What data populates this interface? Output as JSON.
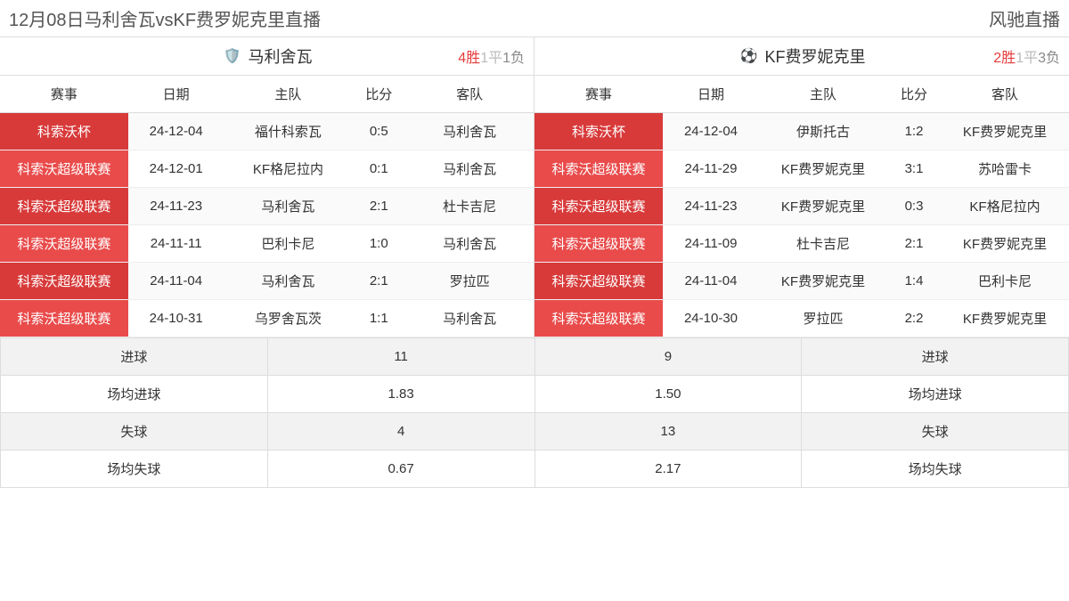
{
  "header": {
    "title": "12月08日马利舍瓦vsKF费罗妮克里直播",
    "brand": "风驰直播"
  },
  "columns": {
    "event": "赛事",
    "date": "日期",
    "home": "主队",
    "score": "比分",
    "away": "客队"
  },
  "left": {
    "logo": "🛡️",
    "name": "马利舍瓦",
    "record": {
      "wins": "4胜",
      "draws": "1平",
      "losses": "1负"
    },
    "matches": [
      {
        "comp": "科索沃杯",
        "date": "24-12-04",
        "home": "福什科索瓦",
        "score": "0:5",
        "away": "马利舍瓦",
        "alt": true
      },
      {
        "comp": "科索沃超级联赛",
        "date": "24-12-01",
        "home": "KF格尼拉内",
        "score": "0:1",
        "away": "马利舍瓦",
        "alt": false
      },
      {
        "comp": "科索沃超级联赛",
        "date": "24-11-23",
        "home": "马利舍瓦",
        "score": "2:1",
        "away": "杜卡吉尼",
        "alt": true
      },
      {
        "comp": "科索沃超级联赛",
        "date": "24-11-11",
        "home": "巴利卡尼",
        "score": "1:0",
        "away": "马利舍瓦",
        "alt": false
      },
      {
        "comp": "科索沃超级联赛",
        "date": "24-11-04",
        "home": "马利舍瓦",
        "score": "2:1",
        "away": "罗拉匹",
        "alt": true
      },
      {
        "comp": "科索沃超级联赛",
        "date": "24-10-31",
        "home": "乌罗舍瓦茨",
        "score": "1:1",
        "away": "马利舍瓦",
        "alt": false
      }
    ]
  },
  "right": {
    "logo": "⚽",
    "name": "KF费罗妮克里",
    "record": {
      "wins": "2胜",
      "draws": "1平",
      "losses": "3负"
    },
    "matches": [
      {
        "comp": "科索沃杯",
        "date": "24-12-04",
        "home": "伊斯托古",
        "score": "1:2",
        "away": "KF费罗妮克里",
        "alt": true
      },
      {
        "comp": "科索沃超级联赛",
        "date": "24-11-29",
        "home": "KF费罗妮克里",
        "score": "3:1",
        "away": "苏哈雷卡",
        "alt": false
      },
      {
        "comp": "科索沃超级联赛",
        "date": "24-11-23",
        "home": "KF费罗妮克里",
        "score": "0:3",
        "away": "KF格尼拉内",
        "alt": true
      },
      {
        "comp": "科索沃超级联赛",
        "date": "24-11-09",
        "home": "杜卡吉尼",
        "score": "2:1",
        "away": "KF费罗妮克里",
        "alt": false
      },
      {
        "comp": "科索沃超级联赛",
        "date": "24-11-04",
        "home": "KF费罗妮克里",
        "score": "1:4",
        "away": "巴利卡尼",
        "alt": true
      },
      {
        "comp": "科索沃超级联赛",
        "date": "24-10-30",
        "home": "罗拉匹",
        "score": "2:2",
        "away": "KF费罗妮克里",
        "alt": false
      }
    ]
  },
  "stats": {
    "rows": [
      {
        "label": "进球",
        "lval": "11",
        "rval": "9"
      },
      {
        "label": "场均进球",
        "lval": "1.83",
        "rval": "1.50"
      },
      {
        "label": "失球",
        "lval": "4",
        "rval": "13"
      },
      {
        "label": "场均失球",
        "lval": "0.67",
        "rval": "2.17"
      }
    ]
  }
}
